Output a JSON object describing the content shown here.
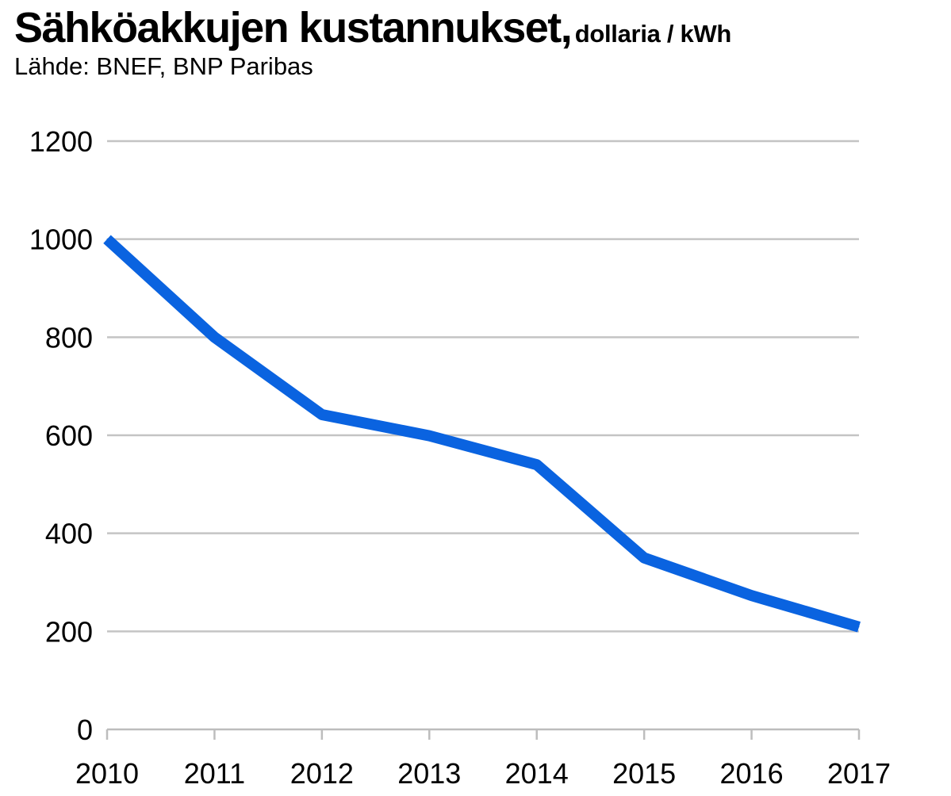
{
  "chart_data": {
    "type": "line",
    "title": "Sähköakkujen kustannukset,",
    "unit": "dollaria / kWh",
    "subtitle": "Lähde: BNEF, BNP Paribas",
    "xlabel": "",
    "ylabel": "",
    "x": [
      2010,
      2011,
      2012,
      2013,
      2014,
      2015,
      2016,
      2017
    ],
    "series": [
      {
        "values": [
          1000,
          800,
          642,
          599,
          540,
          350,
          273,
          209
        ],
        "color": "#0a63e0"
      }
    ],
    "ylim": [
      0,
      1200
    ],
    "yticks": [
      0,
      200,
      400,
      600,
      800,
      1000,
      1200
    ],
    "xticks": [
      "2010",
      "2011",
      "2012",
      "2013",
      "2014",
      "2015",
      "2016",
      "2017"
    ],
    "grid": true,
    "grid_color": "#c4c4c4",
    "axis_color": "#bdbdbd",
    "legend": "none"
  }
}
